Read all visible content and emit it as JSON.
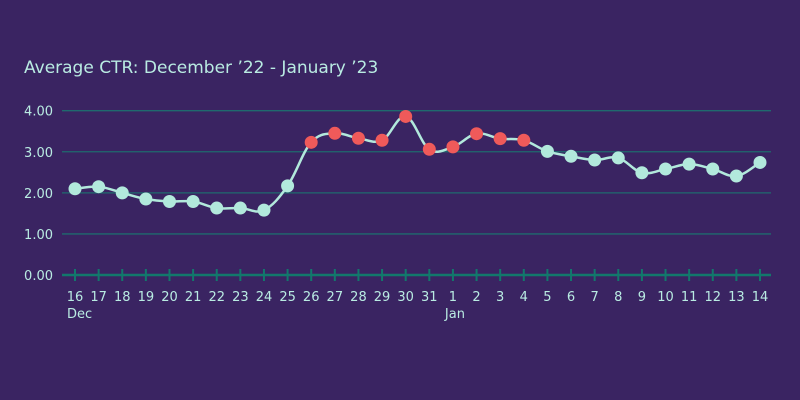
{
  "chart_data": {
    "type": "line",
    "title": "Average CTR: December ’22 - January ’23",
    "xlabel": "",
    "ylabel": "",
    "ylim": [
      0,
      4
    ],
    "yticks": [
      "0.00",
      "1.00",
      "2.00",
      "3.00",
      "4.00"
    ],
    "grid": true,
    "categories": [
      "16",
      "17",
      "18",
      "19",
      "20",
      "21",
      "22",
      "23",
      "24",
      "25",
      "26",
      "27",
      "28",
      "29",
      "30",
      "31",
      "1",
      "2",
      "3",
      "4",
      "5",
      "6",
      "7",
      "8",
      "9",
      "10",
      "11",
      "12",
      "13",
      "14"
    ],
    "month_labels": [
      {
        "at": "16",
        "label": "Dec"
      },
      {
        "at": "1",
        "label": "Jan"
      }
    ],
    "values": [
      2.1,
      2.15,
      2.0,
      1.85,
      1.79,
      1.79,
      1.63,
      1.63,
      1.58,
      2.17,
      3.23,
      3.45,
      3.33,
      3.28,
      3.86,
      3.06,
      3.12,
      3.44,
      3.32,
      3.28,
      3.01,
      2.89,
      2.8,
      2.85,
      2.49,
      2.58,
      2.7,
      2.58,
      2.41,
      2.74
    ],
    "highlighted": [
      false,
      false,
      false,
      false,
      false,
      false,
      false,
      false,
      false,
      false,
      true,
      true,
      true,
      true,
      true,
      true,
      true,
      true,
      true,
      true,
      false,
      false,
      false,
      false,
      false,
      false,
      false,
      false,
      false,
      false
    ],
    "colors": {
      "background": "#3a2462",
      "line": "#b2e9dc",
      "point": "#b2e9dc",
      "highlight_point": "#ef5a5a",
      "grid": "#1f6a6e",
      "axis": "#12786c",
      "text": "#b9ebe2"
    }
  }
}
